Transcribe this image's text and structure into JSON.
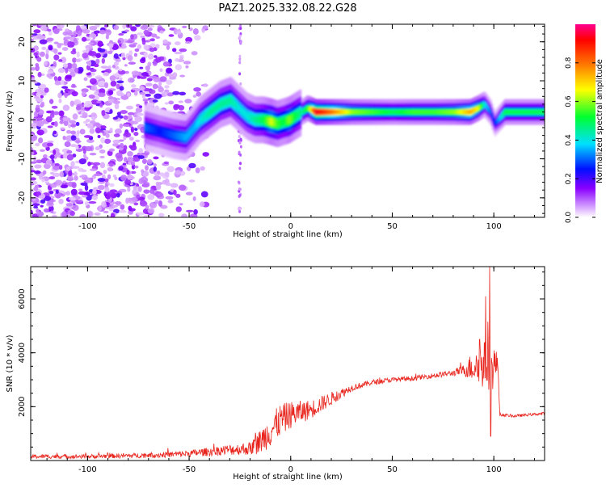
{
  "title": "PAZ1.2025.332.08.22.G28",
  "chart_data": [
    {
      "type": "heatmap",
      "name": "spectrogram",
      "xlabel": "Height of straight line (km)",
      "ylabel": "Frequency (Hz)",
      "xlim": [
        -128,
        125
      ],
      "ylim": [
        -25,
        24.5
      ],
      "xticks": [
        -100,
        -50,
        0,
        50,
        100
      ],
      "yticks": [
        -20,
        -10,
        0,
        10,
        20
      ],
      "xtick_labels": [
        "-100",
        "-50",
        "0",
        "50",
        "100"
      ],
      "ytick_labels": [
        "-20",
        "-10",
        "0",
        "10",
        "20"
      ],
      "colorbar": {
        "label": "Normalized spectral amplitude",
        "range": [
          0,
          1
        ],
        "ticks": [
          0.0,
          0.2,
          0.4,
          0.6,
          0.8
        ],
        "tick_labels": [
          "0.0",
          "0.2",
          "0.4",
          "0.6",
          "0.8"
        ]
      },
      "ridge": {
        "x": [
          -72,
          -65,
          -58,
          -52,
          -48,
          -45,
          -40,
          -35,
          -30,
          -26,
          -22,
          -18,
          -14,
          -10,
          -7,
          -4,
          -1,
          2,
          5,
          8,
          12,
          20,
          30,
          40,
          50,
          60,
          70,
          80,
          88,
          92,
          95,
          98,
          100,
          105,
          115,
          125
        ],
        "y": [
          -2,
          -3,
          -4,
          -4.5,
          -2,
          0,
          2,
          4,
          5,
          3,
          1,
          0,
          0,
          -0.5,
          -1,
          -0.5,
          0,
          1,
          2,
          3,
          2,
          2,
          2,
          2,
          2,
          2,
          2,
          2,
          2,
          3,
          4,
          2,
          -1,
          2,
          2,
          2
        ],
        "amplitude": [
          0.3,
          0.25,
          0.3,
          0.35,
          0.35,
          0.4,
          0.45,
          0.45,
          0.45,
          0.4,
          0.4,
          0.45,
          0.5,
          0.65,
          0.55,
          0.5,
          0.6,
          0.5,
          0.45,
          0.55,
          0.95,
          0.8,
          0.6,
          0.55,
          0.5,
          0.55,
          0.55,
          0.6,
          0.75,
          0.65,
          0.4,
          0.3,
          0.25,
          0.5,
          0.5,
          0.5
        ]
      }
    },
    {
      "type": "line",
      "name": "snr",
      "xlabel": "Height of straight line (km)",
      "ylabel": "SNR (10 * v/v)",
      "xlim": [
        -128,
        125
      ],
      "ylim": [
        0,
        7200
      ],
      "xticks": [
        -100,
        -50,
        0,
        50,
        100
      ],
      "yticks": [
        2000,
        4000,
        6000
      ],
      "xtick_labels": [
        "-100",
        "-50",
        "0",
        "50",
        "100"
      ],
      "ytick_labels": [
        "2000",
        "4000",
        "6000"
      ],
      "color": "#e8241c",
      "envelope": {
        "x": [
          -128,
          -100,
          -80,
          -60,
          -50,
          -40,
          -30,
          -25,
          -20,
          -15,
          -10,
          -5,
          0,
          10,
          20,
          30,
          40,
          50,
          60,
          70,
          80,
          85,
          90,
          95,
          100,
          102,
          103,
          110,
          125
        ],
        "y": [
          150,
          150,
          180,
          220,
          260,
          330,
          400,
          420,
          450,
          700,
          1100,
          1500,
          1700,
          1900,
          2300,
          2700,
          2900,
          3000,
          3050,
          3150,
          3250,
          3350,
          3500,
          3550,
          3500,
          3600,
          1700,
          1650,
          1750
        ],
        "noise": [
          80,
          80,
          90,
          110,
          130,
          160,
          200,
          220,
          250,
          450,
          600,
          600,
          500,
          350,
          250,
          120,
          100,
          90,
          90,
          90,
          110,
          200,
          600,
          900,
          900,
          300,
          60,
          50,
          50
        ]
      },
      "spikes": [
        {
          "x": 98,
          "y": 7200
        },
        {
          "x": 96,
          "y": 6100
        },
        {
          "x": 98.5,
          "y": 900
        },
        {
          "x": 93,
          "y": 4500
        }
      ]
    }
  ]
}
